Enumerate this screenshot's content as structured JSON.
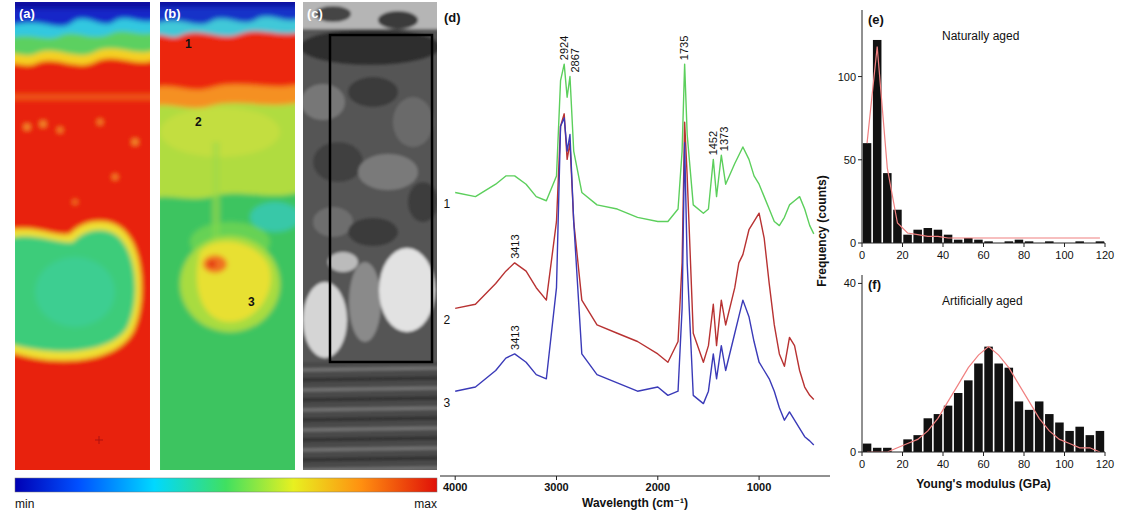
{
  "chart_data": [
    {
      "type": "map",
      "panel": "(a)"
    },
    {
      "type": "map",
      "panel": "(b)",
      "annotations": [
        "1",
        "2",
        "3"
      ]
    },
    {
      "type": "image",
      "panel": "(c)"
    },
    {
      "type": "colorbar",
      "labels": [
        "min",
        "max"
      ]
    },
    {
      "type": "line",
      "panel": "(d)",
      "xlabel": "Wavelength (cm⁻¹)",
      "xlim": [
        4150,
        300
      ],
      "xticks": [
        4000,
        3000,
        2000,
        1000
      ],
      "ylim": [
        0,
        100
      ],
      "tick_labels": "x",
      "x": [
        4000,
        3800,
        3600,
        3500,
        3413,
        3300,
        3200,
        3100,
        3000,
        2960,
        2924,
        2895,
        2867,
        2830,
        2750,
        2600,
        2400,
        2200,
        2000,
        1900,
        1800,
        1760,
        1735,
        1710,
        1650,
        1550,
        1500,
        1452,
        1420,
        1373,
        1330,
        1240,
        1200,
        1160,
        1100,
        1050,
        1000,
        950,
        900,
        850,
        800,
        750,
        700,
        650,
        600,
        550,
        500,
        460
      ],
      "series": [
        {
          "name": "1",
          "color": "#5ccf5c",
          "values": [
            68,
            67,
            70,
            72,
            72,
            70,
            67,
            66,
            72,
            95,
            99,
            91,
            96,
            78,
            68,
            65,
            64,
            62,
            61,
            61,
            64,
            78,
            99,
            82,
            65,
            63,
            64,
            76,
            67,
            77,
            70,
            75,
            77,
            79,
            76,
            72,
            70,
            67,
            64,
            61,
            60,
            62,
            65,
            66,
            67,
            64,
            60,
            58
          ]
        },
        {
          "name": "2",
          "color": "#b83232",
          "values": [
            40,
            41,
            46,
            49,
            51,
            49,
            45,
            42,
            61,
            84,
            87,
            76,
            80,
            61,
            42,
            36,
            34,
            32,
            29,
            27,
            32,
            51,
            85,
            72,
            34,
            27,
            31,
            41,
            31,
            42,
            36,
            45,
            51,
            53,
            59,
            61,
            63,
            57,
            46,
            36,
            29,
            26,
            33,
            31,
            25,
            21,
            19,
            18
          ]
        },
        {
          "name": "3",
          "color": "#3a3ab8",
          "values": [
            20,
            21,
            25,
            28,
            29,
            27,
            24,
            23,
            45,
            84,
            86,
            78,
            82,
            61,
            29,
            24,
            22,
            20,
            21,
            19,
            20,
            40,
            80,
            51,
            19,
            17,
            20,
            29,
            23,
            31,
            25,
            34,
            38,
            42,
            38,
            32,
            27,
            25,
            23,
            20,
            16,
            13,
            15,
            13,
            11,
            9,
            8,
            7
          ]
        }
      ],
      "annotations": [
        {
          "text": "2924",
          "x": 2924,
          "series": 0
        },
        {
          "text": "2867",
          "x": 2867,
          "series": 0
        },
        {
          "text": "1735",
          "x": 1735,
          "series": 0
        },
        {
          "text": "1452",
          "x": 1452,
          "series": 0
        },
        {
          "text": "1373",
          "x": 1373,
          "series": 0
        },
        {
          "text": "3413",
          "x": 3413,
          "series": 1
        },
        {
          "text": "3413",
          "x": 3413,
          "series": 2
        }
      ]
    },
    {
      "type": "histogram",
      "panel": "(e)",
      "title": "Naturally aged",
      "ylabel": "Frequency (counts)",
      "bins": [
        0,
        5,
        10,
        15,
        20,
        25,
        30,
        35,
        40,
        45,
        50,
        55,
        60,
        65,
        70,
        75,
        80,
        85,
        90,
        95,
        100,
        105,
        110,
        115,
        120
      ],
      "xlim": [
        0,
        120
      ],
      "xticks": [
        0,
        20,
        40,
        60,
        80,
        100,
        120
      ],
      "ylim": [
        0,
        140
      ],
      "yticks": [
        0,
        50,
        100
      ],
      "series": [
        {
          "type": "bar",
          "color": "#111111",
          "values": [
            60,
            122,
            42,
            20,
            5,
            8,
            9,
            8,
            5,
            2,
            3,
            2,
            1,
            0,
            1,
            2,
            1,
            0,
            1,
            0,
            0,
            1,
            0,
            1
          ]
        },
        {
          "type": "line",
          "color": "#f08080",
          "values": [
            60,
            118,
            45,
            12,
            6,
            5,
            4,
            4,
            3,
            3,
            3,
            3,
            3,
            3,
            3,
            3,
            3,
            3,
            3,
            3,
            3,
            3,
            3,
            3
          ]
        }
      ]
    },
    {
      "type": "histogram",
      "panel": "(f)",
      "title": "Artificially aged",
      "xlabel": "Young's modulus (GPa)",
      "bins": [
        0,
        5,
        10,
        15,
        20,
        25,
        30,
        35,
        40,
        45,
        50,
        55,
        60,
        65,
        70,
        75,
        80,
        85,
        90,
        95,
        100,
        105,
        110,
        115,
        120
      ],
      "xlim": [
        0,
        120
      ],
      "xticks": [
        0,
        20,
        40,
        60,
        80,
        100,
        120
      ],
      "ylim": [
        0,
        42
      ],
      "yticks": [
        0,
        40
      ],
      "series": [
        {
          "type": "bar",
          "color": "#111111",
          "values": [
            2,
            1,
            1,
            0,
            3,
            4,
            8,
            9,
            11,
            14,
            17,
            21,
            25,
            21,
            20,
            12,
            10,
            12,
            9,
            7,
            5,
            6,
            4,
            5
          ]
        },
        {
          "type": "line",
          "color": "#f08080",
          "values": [
            0,
            0,
            0,
            1,
            2,
            3,
            5,
            8,
            12,
            16,
            20,
            23,
            25,
            23,
            20,
            16,
            12,
            8,
            5,
            3,
            2,
            1,
            1,
            0
          ]
        }
      ]
    }
  ]
}
